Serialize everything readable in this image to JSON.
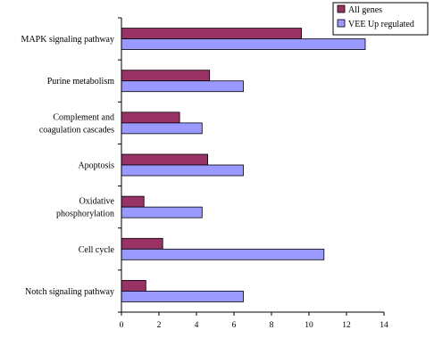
{
  "chart_data": {
    "type": "bar",
    "orientation": "horizontal",
    "categories": [
      [
        "MAPK signaling pathway"
      ],
      [
        "Purine metabolism"
      ],
      [
        "Complement and",
        "coagulation cascades"
      ],
      [
        "Apoptosis"
      ],
      [
        "Oxidative",
        "phosphorylation"
      ],
      [
        "Cell cycle"
      ],
      [
        "Notch signaling pathway"
      ]
    ],
    "series": [
      {
        "name": "All genes",
        "color": "#993366",
        "values": [
          9.6,
          4.7,
          3.1,
          4.6,
          1.2,
          2.2,
          1.3
        ]
      },
      {
        "name": "VEE Up regulated",
        "color": "#9999ff",
        "values": [
          13.0,
          6.5,
          4.3,
          6.5,
          4.3,
          10.8,
          6.5
        ]
      }
    ],
    "xlim": [
      0,
      14
    ],
    "xticks": [
      0,
      2,
      4,
      6,
      8,
      10,
      12,
      14
    ],
    "grid": false,
    "legend_position": "top-right",
    "title": "",
    "xlabel": "",
    "ylabel": ""
  }
}
